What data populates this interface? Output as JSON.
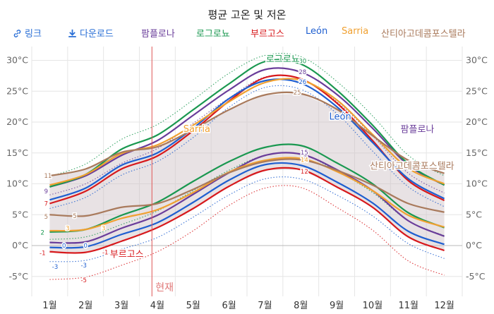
{
  "title": "평균 고온 및 저온",
  "legend": {
    "link_label": "링크",
    "download_label": "다운로드",
    "series": [
      "팜플로나",
      "로그로뇨",
      "부르고스",
      "León",
      "Sarria",
      "산티아고데콤포스텔라"
    ]
  },
  "now_label": "현재",
  "chart_data": {
    "type": "line",
    "title": "평균 고온 및 저온",
    "x": [
      "1월",
      "2월",
      "3월",
      "4월",
      "5월",
      "6월",
      "7월",
      "8월",
      "9월",
      "10월",
      "11월",
      "12월"
    ],
    "y_ticks_left": [
      "30°C",
      "25°C",
      "20°C",
      "15°C",
      "10°C",
      "5°C",
      "0°C",
      "-5°C"
    ],
    "y_ticks_right": [
      "30°C",
      "25°C",
      "20°C",
      "15°C",
      "10°C",
      "5°C",
      "0°C",
      "-5°C"
    ],
    "ylim": [
      -7,
      31
    ],
    "xlabel": "",
    "ylabel": "",
    "grid": true,
    "band": {
      "name": "range",
      "highs_of": "산티아고데콤포스텔라"
    },
    "series": [
      {
        "name": "팜플로나",
        "color": "#6a3d9a",
        "kind": "high",
        "values": [
          9.5,
          11.3,
          14.6,
          17.0,
          21.1,
          25.2,
          28.5,
          28.1,
          24.5,
          19.0,
          13.0,
          9.8
        ]
      },
      {
        "name": "팜플로나",
        "color": "#6a3d9a",
        "kind": "low",
        "values": [
          0.5,
          0.6,
          2.8,
          4.9,
          8.3,
          11.8,
          14.6,
          14.8,
          12.3,
          8.9,
          4.0,
          1.5
        ]
      },
      {
        "name": "로그로뇨",
        "color": "#1a9850",
        "kind": "high",
        "values": [
          9.5,
          11.5,
          15.6,
          17.9,
          22.0,
          26.2,
          29.8,
          29.4,
          25.2,
          19.5,
          13.2,
          9.8
        ]
      },
      {
        "name": "로그로뇨",
        "color": "#1a9850",
        "kind": "low",
        "values": [
          2.2,
          2.6,
          4.9,
          7.0,
          10.4,
          13.6,
          15.9,
          16.2,
          13.4,
          10.0,
          5.3,
          2.9
        ]
      },
      {
        "name": "부르고스",
        "color": "#d7191c",
        "kind": "high",
        "values": [
          6.8,
          8.8,
          12.4,
          14.5,
          18.6,
          23.4,
          27.2,
          27.0,
          23.1,
          17.0,
          10.5,
          7.3
        ]
      },
      {
        "name": "부르고스",
        "color": "#d7191c",
        "kind": "low",
        "values": [
          -1.0,
          -1.1,
          0.7,
          2.9,
          6.0,
          9.6,
          12.2,
          12.3,
          9.5,
          6.2,
          1.4,
          -0.8
        ]
      },
      {
        "name": "León",
        "color": "#1f5fd0",
        "kind": "high",
        "values": [
          7.4,
          9.3,
          13.0,
          15.0,
          19.0,
          23.8,
          26.7,
          26.3,
          22.5,
          16.7,
          10.8,
          7.6
        ]
      },
      {
        "name": "León",
        "color": "#1f5fd0",
        "kind": "low",
        "values": [
          -0.3,
          -0.2,
          1.8,
          3.7,
          7.0,
          10.6,
          13.1,
          13.0,
          10.3,
          6.9,
          2.3,
          0.2
        ]
      },
      {
        "name": "Sarria",
        "color": "#f0a030",
        "kind": "high",
        "values": [
          9.8,
          11.5,
          14.9,
          16.3,
          19.5,
          23.3,
          26.4,
          26.8,
          23.6,
          18.0,
          12.5,
          10.0
        ]
      },
      {
        "name": "Sarria",
        "color": "#f0a030",
        "kind": "low",
        "values": [
          2.4,
          2.6,
          4.4,
          5.8,
          8.6,
          11.9,
          13.8,
          14.1,
          12.0,
          8.9,
          4.9,
          3.0
        ]
      },
      {
        "name": "산티아고데콤포스텔라",
        "color": "#a97a5c",
        "kind": "high",
        "values": [
          11.3,
          12.4,
          15.1,
          16.0,
          18.8,
          22.0,
          24.4,
          24.6,
          22.1,
          17.8,
          13.8,
          11.7
        ]
      },
      {
        "name": "산티아고데콤포스텔라",
        "color": "#a97a5c",
        "kind": "low",
        "values": [
          5.0,
          4.8,
          6.2,
          6.8,
          9.1,
          11.8,
          13.6,
          13.9,
          12.2,
          9.8,
          6.8,
          5.4
        ]
      }
    ],
    "dotted_series": [
      {
        "color": "#1a9850",
        "kind": "high",
        "values": [
          11.2,
          13.2,
          17.2,
          19.6,
          23.6,
          27.9,
          30.8,
          30.6,
          26.6,
          21.0,
          14.6,
          11.3
        ]
      },
      {
        "color": "#1a9850",
        "kind": "low",
        "values": [
          1.0,
          1.4,
          3.4,
          5.6,
          8.9,
          12.2,
          14.6,
          14.8,
          12.1,
          8.6,
          4.0,
          1.6
        ]
      },
      {
        "color": "#1f5fd0",
        "kind": "high",
        "values": [
          6.0,
          7.8,
          11.4,
          13.6,
          17.5,
          22.4,
          25.6,
          25.3,
          21.4,
          15.3,
          9.5,
          6.3
        ]
      },
      {
        "color": "#1f5fd0",
        "kind": "low",
        "values": [
          -2.6,
          -2.4,
          -0.6,
          1.3,
          4.6,
          8.2,
          10.8,
          10.8,
          8.2,
          4.8,
          0.3,
          -2.1
        ]
      },
      {
        "color": "#d7191c",
        "kind": "low",
        "values": [
          -5.5,
          -5.1,
          -3.2,
          -1.0,
          2.4,
          6.5,
          9.3,
          9.4,
          6.2,
          2.5,
          -2.5,
          -4.8
        ]
      },
      {
        "color": "#6a3d9a",
        "kind": "high",
        "values": [
          8.2,
          10.0,
          13.3,
          15.7,
          19.8,
          23.9,
          27.3,
          27.0,
          23.3,
          17.8,
          11.7,
          8.5
        ]
      }
    ],
    "point_labels": [
      {
        "text": "30",
        "color": "#1a9850",
        "month": 7.55,
        "value": 29.9
      },
      {
        "text": "28",
        "color": "#6a3d9a",
        "month": 7.55,
        "value": 28.1
      },
      {
        "text": "26",
        "color": "#1f5fd0",
        "month": 7.55,
        "value": 26.5
      },
      {
        "text": "25",
        "color": "#a97a5c",
        "month": 7.4,
        "value": 24.8
      },
      {
        "text": "15",
        "color": "#6a3d9a",
        "month": 7.6,
        "value": 15.1
      },
      {
        "text": "14",
        "color": "#f0a030",
        "month": 7.6,
        "value": 13.9
      },
      {
        "text": "12",
        "color": "#d7191c",
        "month": 7.6,
        "value": 12.0
      },
      {
        "text": "11",
        "color": "#a97a5c",
        "month": 0.45,
        "value": 11.3
      },
      {
        "text": "9",
        "color": "#6a3d9a",
        "month": 0.4,
        "value": 8.8
      },
      {
        "text": "7",
        "color": "#d7191c",
        "month": 0.4,
        "value": 6.8
      },
      {
        "text": "5",
        "color": "#a97a5c",
        "month": 0.4,
        "value": 4.7
      },
      {
        "text": "5",
        "color": "#a97a5c",
        "month": 1.2,
        "value": 4.8
      },
      {
        "text": "3",
        "color": "#f0a030",
        "month": 1.0,
        "value": 2.8
      },
      {
        "text": "3",
        "color": "#f0a030",
        "month": 2.0,
        "value": 2.8
      },
      {
        "text": "2",
        "color": "#1a9850",
        "month": 0.3,
        "value": 2.1
      },
      {
        "text": "0",
        "color": "#1f5fd0",
        "month": 0.9,
        "value": 0.0
      },
      {
        "text": "0",
        "color": "#1f5fd0",
        "month": 1.5,
        "value": 0.0
      },
      {
        "text": "-1",
        "color": "#d7191c",
        "month": 0.3,
        "value": -1.2
      },
      {
        "text": "-1",
        "color": "#d7191c",
        "month": 2.05,
        "value": -1.1
      },
      {
        "text": "-3",
        "color": "#1f5fd0",
        "month": 0.65,
        "value": -3.4
      },
      {
        "text": "-3",
        "color": "#1f5fd0",
        "month": 1.45,
        "value": -3.2
      },
      {
        "text": "-5",
        "color": "#d7191c",
        "month": 1.45,
        "value": -5.6
      }
    ],
    "series_labels": [
      {
        "text": "로그로뇨",
        "color": "#1a9850",
        "month": 7.0,
        "value": 30.3
      },
      {
        "text": "León",
        "color": "#1f5fd0",
        "month": 8.6,
        "value": 21.0
      },
      {
        "text": "팜플로나",
        "color": "#6a3d9a",
        "month": 10.75,
        "value": 18.9
      },
      {
        "text": "Sarria",
        "color": "#f0a030",
        "month": 4.6,
        "value": 19.0
      },
      {
        "text": "산티아고데콤포스텔라",
        "color": "#a97a5c",
        "month": 10.6,
        "value": 13.0
      },
      {
        "text": "부르고스",
        "color": "#d7191c",
        "month": 2.65,
        "value": -1.3
      }
    ],
    "now_month": 3.35
  }
}
